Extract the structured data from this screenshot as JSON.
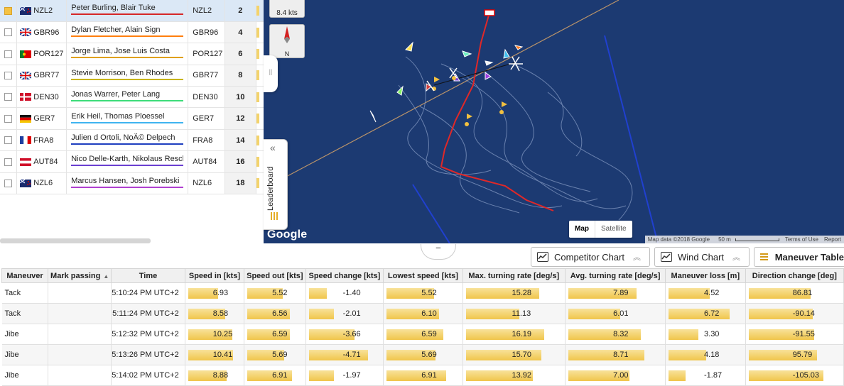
{
  "competitors": [
    {
      "selected": true,
      "flag": "nzl",
      "sail": "NZL2",
      "names": "Peter Burling, Blair Tuke",
      "sail2": "NZL2",
      "rank": "2",
      "color": "#d62728"
    },
    {
      "selected": false,
      "flag": "gbr",
      "sail": "GBR96",
      "names": "Dylan Fletcher, Alain Sign",
      "sail2": "GBR96",
      "rank": "4",
      "color": "#ff7f0e"
    },
    {
      "selected": false,
      "flag": "por",
      "sail": "POR127",
      "names": "Jorge Lima, Jose Luis Costa",
      "sail2": "POR127",
      "rank": "6",
      "color": "#e0a000"
    },
    {
      "selected": false,
      "flag": "gbr",
      "sail": "GBR77",
      "names": "Stevie Morrison, Ben Rhodes",
      "sail2": "GBR77",
      "rank": "8",
      "color": "#c8b400"
    },
    {
      "selected": false,
      "flag": "den",
      "sail": "DEN30",
      "names": "Jonas Warrer, Peter Lang",
      "sail2": "DEN30",
      "rank": "10",
      "color": "#3ddc7a"
    },
    {
      "selected": false,
      "flag": "ger",
      "sail": "GER7",
      "names": "Erik Heil, Thomas Ploessel",
      "sail2": "GER7",
      "rank": "12",
      "color": "#3fb4f0"
    },
    {
      "selected": false,
      "flag": "fra",
      "sail": "FRA8",
      "names": "Julien d Ortoli, NoÃ© Delpech",
      "sail2": "FRA8",
      "rank": "14",
      "color": "#1f3fbf"
    },
    {
      "selected": false,
      "flag": "aut",
      "sail": "AUT84",
      "names": "Nico Delle-Karth, Nikolaus Resch",
      "sail2": "AUT84",
      "rank": "16",
      "color": "#6a3fd0"
    },
    {
      "selected": false,
      "flag": "nzl",
      "sail": "NZL6",
      "names": "Marcus Hansen, Josh Porebski",
      "sail2": "NZL6",
      "rank": "18",
      "color": "#b040d0"
    }
  ],
  "map": {
    "wind_speed": "8.4 kts",
    "north_label": "N",
    "google": "Google",
    "maptype_map": "Map",
    "maptype_satellite": "Satellite",
    "attribution": "Map data ©2018 Google",
    "scale": "50 m",
    "terms": "Terms of Use",
    "report": "Report"
  },
  "leaderboard_tab": "Leaderboard",
  "chart_buttons": {
    "competitor": "Competitor Chart",
    "wind": "Wind Chart",
    "maneuver": "Maneuver Table"
  },
  "maneuver_table": {
    "headers": [
      "Maneuver",
      "Mark passing",
      "Time",
      "Speed in [kts]",
      "Speed out [kts]",
      "Speed change [kts]",
      "Lowest speed [kts]",
      "Max. turning rate [deg/s]",
      "Avg. turning rate [deg/s]",
      "Maneuver loss [m]",
      "Direction change [deg]"
    ],
    "rows": [
      {
        "maneuver": "Tack",
        "mark": "",
        "time": "5:10:24 PM UTC+2",
        "speed_in": "6.93",
        "speed_out": "5.52",
        "speed_change": "-1.40",
        "lowest": "5.52",
        "max_turn": "15.28",
        "avg_turn": "7.89",
        "loss": "4.52",
        "dir_change": "86.81"
      },
      {
        "maneuver": "Tack",
        "mark": "",
        "time": "5:11:24 PM UTC+2",
        "speed_in": "8.58",
        "speed_out": "6.56",
        "speed_change": "-2.01",
        "lowest": "6.10",
        "max_turn": "11.13",
        "avg_turn": "6.01",
        "loss": "6.72",
        "dir_change": "-90.14"
      },
      {
        "maneuver": "Jibe",
        "mark": "",
        "time": "5:12:32 PM UTC+2",
        "speed_in": "10.25",
        "speed_out": "6.59",
        "speed_change": "-3.66",
        "lowest": "6.59",
        "max_turn": "16.19",
        "avg_turn": "8.32",
        "loss": "3.30",
        "dir_change": "-91.55"
      },
      {
        "maneuver": "Jibe",
        "mark": "",
        "time": "5:13:26 PM UTC+2",
        "speed_in": "10.41",
        "speed_out": "5.69",
        "speed_change": "-4.71",
        "lowest": "5.69",
        "max_turn": "15.70",
        "avg_turn": "8.71",
        "loss": "4.18",
        "dir_change": "95.79"
      },
      {
        "maneuver": "Jibe",
        "mark": "",
        "time": "5:14:02 PM UTC+2",
        "speed_in": "8.88",
        "speed_out": "6.91",
        "speed_change": "-1.97",
        "lowest": "6.91",
        "max_turn": "13.92",
        "avg_turn": "7.00",
        "loss": "-1.87",
        "dir_change": "-105.03"
      }
    ]
  }
}
